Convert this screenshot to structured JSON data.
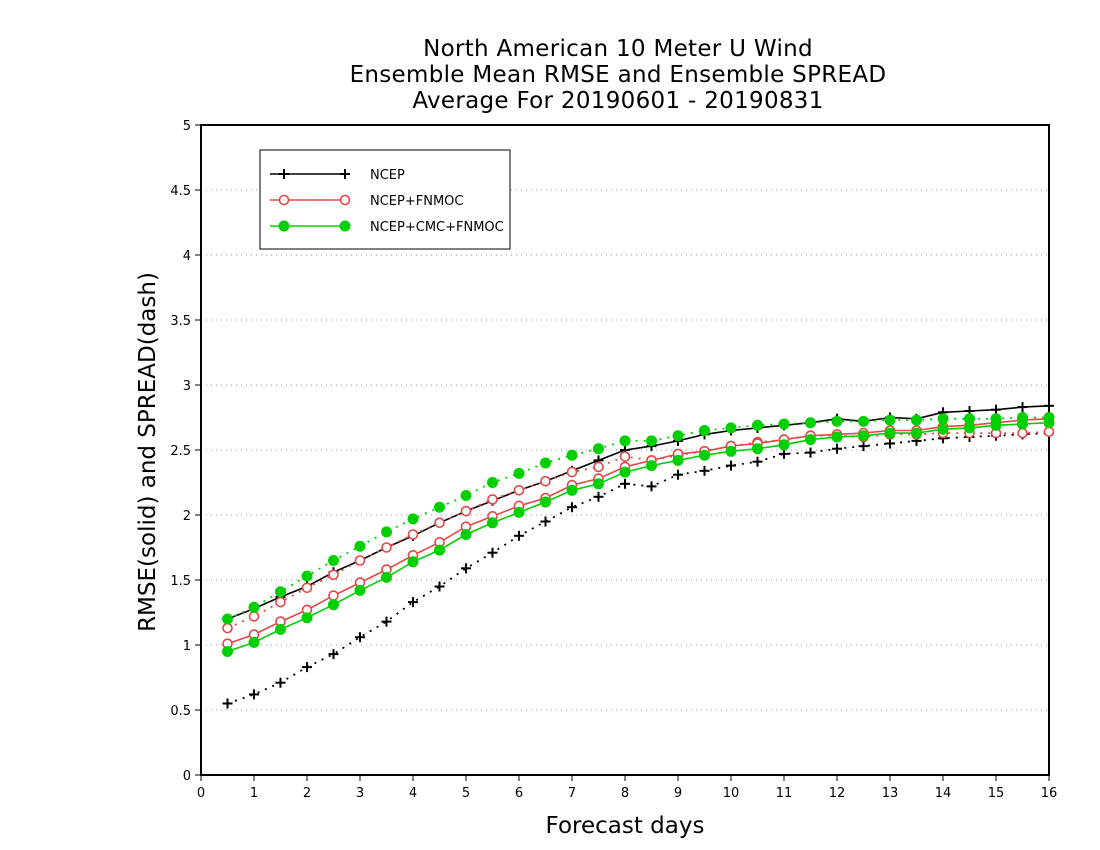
{
  "chart_data": {
    "type": "line",
    "title": [
      "North American 10 Meter U Wind",
      "Ensemble Mean RMSE and Ensemble SPREAD",
      "Average For 20190601 - 20190831"
    ],
    "xlabel": "Forecast days",
    "ylabel": "RMSE(solid) and SPREAD(dash)",
    "xlim": [
      0,
      16
    ],
    "ylim": [
      0,
      5
    ],
    "xticks": [
      "0",
      "1",
      "2",
      "3",
      "4",
      "5",
      "6",
      "7",
      "8",
      "9",
      "10",
      "11",
      "12",
      "13",
      "14",
      "15",
      "16"
    ],
    "yticks": [
      "0",
      "0.5",
      "1",
      "1.5",
      "2",
      "2.5",
      "3",
      "3.5",
      "4",
      "4.5",
      "5"
    ],
    "grid": true,
    "legend_position": "top-left",
    "x": [
      0.5,
      1,
      1.5,
      2,
      2.5,
      3,
      3.5,
      4,
      4.5,
      5,
      5.5,
      6,
      6.5,
      7,
      7.5,
      8,
      8.5,
      9,
      9.5,
      10,
      10.5,
      11,
      11.5,
      12,
      12.5,
      13,
      13.5,
      14,
      14.5,
      15,
      15.5,
      16
    ],
    "series": [
      {
        "name": "NCEP",
        "color": "#000000",
        "marker": "plus",
        "rmse": [
          1.2,
          1.28,
          1.37,
          1.45,
          1.56,
          1.65,
          1.75,
          1.84,
          1.94,
          2.03,
          2.11,
          2.19,
          2.26,
          2.34,
          2.42,
          2.5,
          2.53,
          2.57,
          2.62,
          2.65,
          2.67,
          2.69,
          2.71,
          2.74,
          2.72,
          2.75,
          2.74,
          2.79,
          2.8,
          2.81,
          2.83,
          2.84
        ],
        "spread": [
          0.55,
          0.62,
          0.71,
          0.83,
          0.93,
          1.06,
          1.18,
          1.33,
          1.45,
          1.59,
          1.71,
          1.84,
          1.95,
          2.06,
          2.14,
          2.24,
          2.22,
          2.31,
          2.34,
          2.38,
          2.41,
          2.47,
          2.48,
          2.51,
          2.53,
          2.55,
          2.57,
          2.59,
          2.6,
          2.61,
          2.62,
          2.63
        ]
      },
      {
        "name": "NCEP+FNMOC",
        "color": "#e34848",
        "marker": "open-circle",
        "rmse": [
          1.01,
          1.08,
          1.18,
          1.27,
          1.38,
          1.48,
          1.58,
          1.69,
          1.79,
          1.91,
          1.99,
          2.07,
          2.13,
          2.23,
          2.28,
          2.37,
          2.42,
          2.47,
          2.49,
          2.53,
          2.55,
          2.58,
          2.61,
          2.62,
          2.63,
          2.65,
          2.65,
          2.68,
          2.69,
          2.71,
          2.73,
          2.74
        ],
        "spread": [
          1.13,
          1.22,
          1.33,
          1.44,
          1.54,
          1.65,
          1.75,
          1.85,
          1.94,
          2.03,
          2.12,
          2.19,
          2.26,
          2.33,
          2.37,
          2.45,
          2.42,
          2.46,
          2.49,
          2.53,
          2.56,
          2.58,
          2.61,
          2.61,
          2.6,
          2.62,
          2.62,
          2.63,
          2.63,
          2.63,
          2.63,
          2.64
        ]
      },
      {
        "name": "NCEP+CMC+FNMOC",
        "color": "#00d000",
        "marker": "filled-circle",
        "rmse": [
          0.95,
          1.02,
          1.12,
          1.21,
          1.31,
          1.42,
          1.52,
          1.64,
          1.73,
          1.85,
          1.94,
          2.02,
          2.1,
          2.19,
          2.24,
          2.33,
          2.38,
          2.42,
          2.46,
          2.49,
          2.51,
          2.54,
          2.58,
          2.6,
          2.61,
          2.63,
          2.63,
          2.66,
          2.67,
          2.69,
          2.7,
          2.71
        ],
        "spread": [
          1.2,
          1.29,
          1.41,
          1.53,
          1.65,
          1.76,
          1.87,
          1.97,
          2.06,
          2.15,
          2.25,
          2.32,
          2.4,
          2.46,
          2.51,
          2.57,
          2.57,
          2.61,
          2.65,
          2.67,
          2.69,
          2.7,
          2.71,
          2.72,
          2.72,
          2.73,
          2.73,
          2.74,
          2.74,
          2.74,
          2.75,
          2.75
        ]
      }
    ]
  }
}
